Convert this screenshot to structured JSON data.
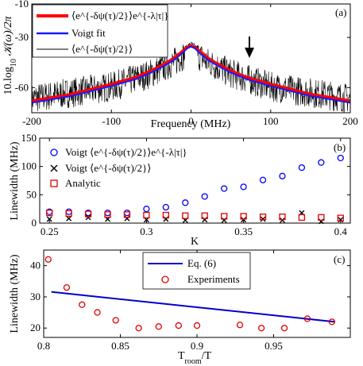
{
  "chart_data": [
    {
      "panel": "(a)",
      "type": "line",
      "xlabel": "Frequency (MHz)",
      "ylabel": "10.log₁₀ 𝒦(ω)/2π",
      "xlim": [
        -200,
        200
      ],
      "ylim": [
        -75,
        -10
      ],
      "xticks": [
        -200,
        -100,
        0,
        100,
        200
      ],
      "yticks": [
        -10,
        -30,
        -60
      ],
      "legend_position": "top-left",
      "annotation": "arrow near 70 MHz",
      "series": [
        {
          "name": "⟨e^{-δψ(τ)/2}⟩e^{-λ|τ|}",
          "color": "#ff0000",
          "x": [
            -200,
            -150,
            -100,
            -70,
            -50,
            -30,
            -20,
            -10,
            -5,
            0,
            5,
            10,
            20,
            30,
            50,
            70,
            100,
            150,
            200
          ],
          "values": [
            -68,
            -64,
            -58,
            -54,
            -50,
            -45,
            -42,
            -38,
            -36,
            -35,
            -36,
            -38,
            -42,
            -45,
            -50,
            -54,
            -58,
            -64,
            -68
          ]
        },
        {
          "name": "Voigt fit",
          "color": "#1a1aff",
          "x": [
            -200,
            -150,
            -100,
            -70,
            -50,
            -30,
            -20,
            -10,
            -5,
            0,
            5,
            10,
            20,
            30,
            50,
            70,
            100,
            150,
            200
          ],
          "values": [
            -69,
            -65,
            -59,
            -55,
            -51,
            -46,
            -43,
            -39,
            -36.5,
            -35.5,
            -36.5,
            -39,
            -43,
            -46,
            -51,
            -55,
            -59,
            -65,
            -69
          ]
        },
        {
          "name": "⟨e^{-δψ(τ)/2}⟩",
          "color": "#000000",
          "x": [
            -200,
            -100,
            -50,
            -20,
            0,
            20,
            50,
            100,
            200
          ],
          "values": [
            -62,
            -55,
            -47,
            -40,
            -33,
            -40,
            -47,
            -55,
            -62
          ]
        }
      ]
    },
    {
      "panel": "(b)",
      "type": "scatter",
      "xlabel": "K",
      "ylabel": "Linewidth (MHz)",
      "xlim": [
        0.245,
        0.405
      ],
      "ylim": [
        0,
        150
      ],
      "xticks": [
        0.25,
        0.3,
        0.35,
        0.4
      ],
      "yticks": [
        0,
        50,
        100,
        150
      ],
      "legend_position": "top-left",
      "series": [
        {
          "name": "Voigt ⟨e^{-δψ(τ)/2}⟩e^{-λ|τ|}",
          "color": "#0000ff",
          "marker": "circle",
          "x": [
            0.25,
            0.26,
            0.27,
            0.28,
            0.29,
            0.3,
            0.31,
            0.32,
            0.33,
            0.34,
            0.35,
            0.36,
            0.37,
            0.38,
            0.39,
            0.4
          ],
          "values": [
            20,
            20,
            18,
            18,
            18,
            25,
            28,
            36,
            47,
            61,
            64,
            76,
            83,
            98,
            107,
            115
          ]
        },
        {
          "name": "Voigt ⟨e^{-δψ(τ)/2}⟩",
          "color": "#000000",
          "marker": "x",
          "x": [
            0.25,
            0.26,
            0.27,
            0.28,
            0.29,
            0.3,
            0.31,
            0.32,
            0.33,
            0.34,
            0.35,
            0.36,
            0.37,
            0.38,
            0.39,
            0.4
          ],
          "values": [
            7,
            8,
            10,
            7,
            8,
            6,
            7,
            5,
            6,
            5,
            6,
            7,
            5,
            18,
            3,
            6
          ]
        },
        {
          "name": "Analytic",
          "color": "#e00000",
          "marker": "square",
          "x": [
            0.25,
            0.26,
            0.27,
            0.28,
            0.29,
            0.3,
            0.31,
            0.32,
            0.33,
            0.34,
            0.35,
            0.36,
            0.37,
            0.38,
            0.39,
            0.4
          ],
          "values": [
            18,
            17,
            16,
            15,
            15,
            14,
            14,
            13,
            13,
            12,
            12,
            11,
            11,
            10,
            10,
            9
          ]
        }
      ]
    },
    {
      "panel": "(c)",
      "type": "scatter",
      "xlabel": "T_room/T",
      "ylabel": "Linewidth (MHz)",
      "xlim": [
        0.8,
        1.0
      ],
      "ylim": [
        17,
        45
      ],
      "xticks": [
        0.8,
        0.85,
        0.9,
        0.95
      ],
      "yticks": [
        20,
        30,
        40
      ],
      "legend_position": "top-center",
      "series": [
        {
          "name": "Eq. (6)",
          "color": "#0000cc",
          "marker": "line",
          "x": [
            0.805,
            0.99
          ],
          "values": [
            31.6,
            22.0
          ]
        },
        {
          "name": "Experiments",
          "color": "#e00000",
          "marker": "circle",
          "x": [
            0.803,
            0.815,
            0.825,
            0.835,
            0.847,
            0.862,
            0.875,
            0.888,
            0.9,
            0.928,
            0.942,
            0.957,
            0.972,
            0.988
          ],
          "values": [
            42,
            33,
            27.5,
            25,
            22.5,
            20,
            20.5,
            20.8,
            20.8,
            21,
            20,
            20,
            23,
            22
          ]
        }
      ]
    }
  ],
  "tick_labels": {
    "a_x": [
      "-200",
      "-100",
      "0",
      "100",
      "200"
    ],
    "a_y": [
      "-10",
      "-30",
      "-60"
    ],
    "b_x": [
      "0.25",
      "0.3",
      "0.35",
      "0.4"
    ],
    "b_y": [
      "0",
      "50",
      "100",
      "150"
    ],
    "c_x": [
      "0.8",
      "0.85",
      "0.9",
      "0.95"
    ],
    "c_y": [
      "20",
      "30",
      "40"
    ]
  },
  "labels": {
    "a_panel": "(a)",
    "b_panel": "(b)",
    "c_panel": "(c)",
    "a_xlabel": "Frequency (MHz)",
    "b_xlabel": "K",
    "b_ylabel": "Linewidth (MHz)",
    "c_ylabel": "Linewidth (MHz)",
    "c_xlabel_main": "T",
    "c_xlabel_sub": "room",
    "c_xlabel_tail": "/T",
    "a_ylabel_pre": "10.log",
    "a_ylabel_sub": "10",
    "a_ylabel_post": " 𝒦(ω)/2π"
  },
  "legends": {
    "a_red": "⟨e^{-δψ(τ)/2}⟩e^{-λ|τ|}",
    "a_blue": "Voigt fit",
    "a_black": "⟨e^{-δψ(τ)/2}⟩",
    "b_circle": "Voigt ⟨e^{-δψ(τ)/2}⟩e^{-λ|τ|}",
    "b_x": "Voigt ⟨e^{-δψ(τ)/2}⟩",
    "b_square": "Analytic",
    "c_line": "Eq. (6)",
    "c_circle": "Experiments"
  }
}
